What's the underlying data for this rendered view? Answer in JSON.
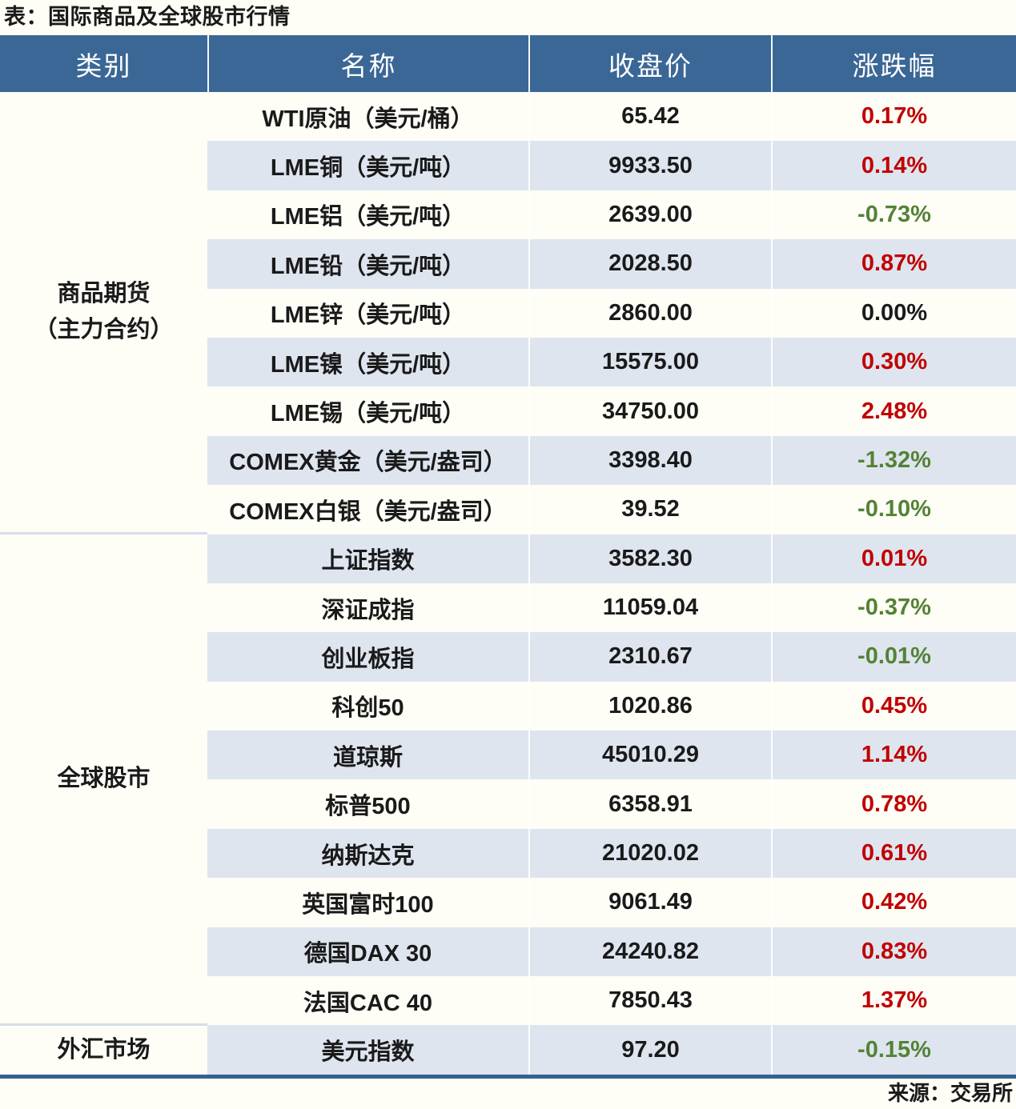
{
  "title": "表：国际商品及全球股市行情",
  "source": "来源：交易所",
  "colors": {
    "header_bg": "#3A6795",
    "header_text": "#FFFFFF",
    "stripe_bg": "#DEE5EF",
    "page_bg": "#FEFDF6",
    "up": "#C00000",
    "down": "#548235",
    "text": "#1A1A1A",
    "bottom_border": "#35618E",
    "divider": "#D6DEE9"
  },
  "table": {
    "headers": [
      "类别",
      "名称",
      "收盘价",
      "涨跌幅"
    ],
    "groups": [
      {
        "category": "商品期货\n（主力合约）",
        "rows": [
          {
            "name": "WTI原油（美元/桶）",
            "close": "65.42",
            "change": "0.17%",
            "dir": "up"
          },
          {
            "name": "LME铜（美元/吨）",
            "close": "9933.50",
            "change": "0.14%",
            "dir": "up"
          },
          {
            "name": "LME铝（美元/吨）",
            "close": "2639.00",
            "change": "-0.73%",
            "dir": "down"
          },
          {
            "name": "LME铅（美元/吨）",
            "close": "2028.50",
            "change": "0.87%",
            "dir": "up"
          },
          {
            "name": "LME锌（美元/吨）",
            "close": "2860.00",
            "change": "0.00%",
            "dir": "flat"
          },
          {
            "name": "LME镍（美元/吨）",
            "close": "15575.00",
            "change": "0.30%",
            "dir": "up"
          },
          {
            "name": "LME锡（美元/吨）",
            "close": "34750.00",
            "change": "2.48%",
            "dir": "up"
          },
          {
            "name": "COMEX黄金（美元/盎司）",
            "close": "3398.40",
            "change": "-1.32%",
            "dir": "down"
          },
          {
            "name": "COMEX白银（美元/盎司）",
            "close": "39.52",
            "change": "-0.10%",
            "dir": "down"
          }
        ]
      },
      {
        "category": "全球股市",
        "rows": [
          {
            "name": "上证指数",
            "close": "3582.30",
            "change": "0.01%",
            "dir": "up"
          },
          {
            "name": "深证成指",
            "close": "11059.04",
            "change": "-0.37%",
            "dir": "down"
          },
          {
            "name": "创业板指",
            "close": "2310.67",
            "change": "-0.01%",
            "dir": "down"
          },
          {
            "name": "科创50",
            "close": "1020.86",
            "change": "0.45%",
            "dir": "up"
          },
          {
            "name": "道琼斯",
            "close": "45010.29",
            "change": "1.14%",
            "dir": "up"
          },
          {
            "name": "标普500",
            "close": "6358.91",
            "change": "0.78%",
            "dir": "up"
          },
          {
            "name": "纳斯达克",
            "close": "21020.02",
            "change": "0.61%",
            "dir": "up"
          },
          {
            "name": "英国富时100",
            "close": "9061.49",
            "change": "0.42%",
            "dir": "up"
          },
          {
            "name": "德国DAX 30",
            "close": "24240.82",
            "change": "0.83%",
            "dir": "up"
          },
          {
            "name": "法国CAC 40",
            "close": "7850.43",
            "change": "1.37%",
            "dir": "up"
          }
        ]
      },
      {
        "category": "外汇市场",
        "rows": [
          {
            "name": "美元指数",
            "close": "97.20",
            "change": "-0.15%",
            "dir": "down"
          }
        ]
      }
    ]
  },
  "chart_data": {
    "type": "table",
    "title": "表：国际商品及全球股市行情",
    "columns": [
      "类别",
      "名称",
      "收盘价",
      "涨跌幅"
    ],
    "rows": [
      [
        "商品期货（主力合约）",
        "WTI原油（美元/桶）",
        65.42,
        "0.17%"
      ],
      [
        "商品期货（主力合约）",
        "LME铜（美元/吨）",
        9933.5,
        "0.14%"
      ],
      [
        "商品期货（主力合约）",
        "LME铝（美元/吨）",
        2639.0,
        "-0.73%"
      ],
      [
        "商品期货（主力合约）",
        "LME铅（美元/吨）",
        2028.5,
        "0.87%"
      ],
      [
        "商品期货（主力合约）",
        "LME锌（美元/吨）",
        2860.0,
        "0.00%"
      ],
      [
        "商品期货（主力合约）",
        "LME镍（美元/吨）",
        15575.0,
        "0.30%"
      ],
      [
        "商品期货（主力合约）",
        "LME锡（美元/吨）",
        34750.0,
        "2.48%"
      ],
      [
        "商品期货（主力合约）",
        "COMEX黄金（美元/盎司）",
        3398.4,
        "-1.32%"
      ],
      [
        "商品期货（主力合约）",
        "COMEX白银（美元/盎司）",
        39.52,
        "-0.10%"
      ],
      [
        "全球股市",
        "上证指数",
        3582.3,
        "0.01%"
      ],
      [
        "全球股市",
        "深证成指",
        11059.04,
        "-0.37%"
      ],
      [
        "全球股市",
        "创业板指",
        2310.67,
        "-0.01%"
      ],
      [
        "全球股市",
        "科创50",
        1020.86,
        "0.45%"
      ],
      [
        "全球股市",
        "道琼斯",
        45010.29,
        "1.14%"
      ],
      [
        "全球股市",
        "标普500",
        6358.91,
        "0.78%"
      ],
      [
        "全球股市",
        "纳斯达克",
        21020.02,
        "0.61%"
      ],
      [
        "全球股市",
        "英国富时100",
        9061.49,
        "0.42%"
      ],
      [
        "全球股市",
        "德国DAX 30",
        24240.82,
        "0.83%"
      ],
      [
        "全球股市",
        "法国CAC 40",
        7850.43,
        "1.37%"
      ],
      [
        "外汇市场",
        "美元指数",
        97.2,
        "-0.15%"
      ]
    ]
  }
}
